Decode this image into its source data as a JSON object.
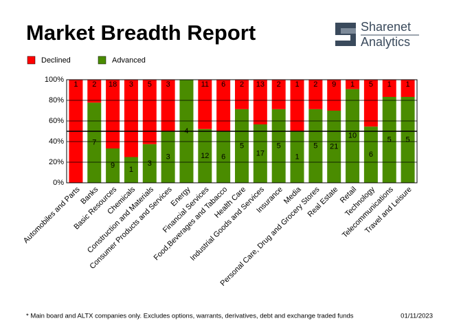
{
  "chart_data": {
    "type": "bar",
    "stacked": "percent",
    "title": "Market Breadth Report",
    "brand": [
      "Sharenet",
      "Analytics"
    ],
    "categories": [
      "Automobiles and Parts",
      "Banks",
      "Basic Resources",
      "Chemicals",
      "Construction and Materials",
      "Consumer Products and Services",
      "Energy",
      "Financial Services",
      "Food,Beverages and Tabacco",
      "Health Care",
      "Industrial Goods and Services",
      "Insurance",
      "Media",
      "Personal Care, Drug and Grocery Stores",
      "Real Estate",
      "Retail",
      "Technology",
      "Telecommunications",
      "Travel and Leisure"
    ],
    "series": [
      {
        "name": "Declined",
        "color": "#ff0000",
        "values": [
          1,
          2,
          18,
          3,
          5,
          3,
          0,
          11,
          6,
          2,
          13,
          2,
          1,
          2,
          9,
          1,
          5,
          1,
          1
        ]
      },
      {
        "name": "Advanced",
        "color": "#4a8c00",
        "values": [
          0,
          7,
          9,
          1,
          3,
          3,
          4,
          12,
          6,
          5,
          17,
          5,
          1,
          5,
          21,
          10,
          6,
          5,
          5
        ]
      }
    ],
    "ylim": [
      0,
      100
    ],
    "yticks": [
      {
        "value": 0,
        "label": "0%"
      },
      {
        "value": 20,
        "label": "20%"
      },
      {
        "value": 40,
        "label": "40%"
      },
      {
        "value": 60,
        "label": "60%"
      },
      {
        "value": 80,
        "label": "80%"
      },
      {
        "value": 100,
        "label": "100%"
      }
    ],
    "reference_line": 50,
    "grid": true,
    "legend": "top-left",
    "note": "* Main board and ALTX companies only. Excludes options, warrants, derivatives, debt and exchange traded funds",
    "date": "01/11/2023"
  }
}
